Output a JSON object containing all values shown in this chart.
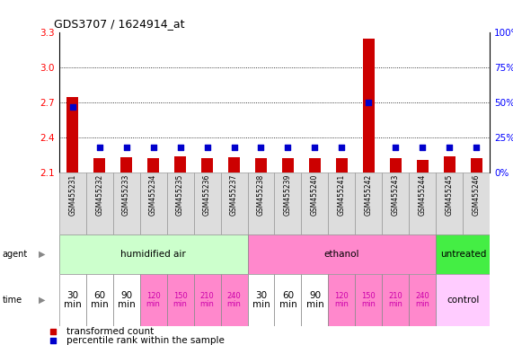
{
  "title": "GDS3707 / 1624914_at",
  "samples": [
    "GSM455231",
    "GSM455232",
    "GSM455233",
    "GSM455234",
    "GSM455235",
    "GSM455236",
    "GSM455237",
    "GSM455238",
    "GSM455239",
    "GSM455240",
    "GSM455241",
    "GSM455242",
    "GSM455243",
    "GSM455244",
    "GSM455245",
    "GSM455246"
  ],
  "transformed_count": [
    2.75,
    2.22,
    2.23,
    2.22,
    2.24,
    2.22,
    2.23,
    2.22,
    2.22,
    2.22,
    2.22,
    3.25,
    2.22,
    2.21,
    2.24,
    2.22
  ],
  "percentile_rank": [
    47,
    18,
    18,
    18,
    18,
    18,
    18,
    18,
    18,
    18,
    18,
    50,
    18,
    18,
    18,
    18
  ],
  "ylim_left": [
    2.1,
    3.3
  ],
  "ylim_right": [
    0,
    100
  ],
  "yticks_left": [
    2.1,
    2.4,
    2.7,
    3.0,
    3.3
  ],
  "yticks_right": [
    0,
    25,
    50,
    75,
    100
  ],
  "ytick_labels_right": [
    "0%",
    "25%",
    "50%",
    "75%",
    "100%"
  ],
  "gridlines": [
    2.4,
    2.7,
    3.0
  ],
  "agent_groups": [
    {
      "label": "humidified air",
      "start": 0,
      "end": 7,
      "color": "#ccffcc"
    },
    {
      "label": "ethanol",
      "start": 7,
      "end": 14,
      "color": "#ff88cc"
    },
    {
      "label": "untreated",
      "start": 14,
      "end": 16,
      "color": "#44ee44"
    }
  ],
  "time_labels_14": [
    "30\nmin",
    "60\nmin",
    "90\nmin",
    "120\nmin",
    "150\nmin",
    "210\nmin",
    "240\nmin",
    "30\nmin",
    "60\nmin",
    "90\nmin",
    "120\nmin",
    "150\nmin",
    "210\nmin",
    "240\nmin"
  ],
  "time_white_idx": [
    0,
    1,
    2,
    7,
    8,
    9
  ],
  "time_pink_idx": [
    3,
    4,
    5,
    6,
    10,
    11,
    12,
    13
  ],
  "time_control_color": "#ffccff",
  "time_pink_color": "#ff88cc",
  "time_white_color": "#ffffff",
  "bar_color": "#cc0000",
  "dot_color": "#0000cc",
  "sample_cell_color": "#dddddd",
  "sample_cell_border": "#999999"
}
